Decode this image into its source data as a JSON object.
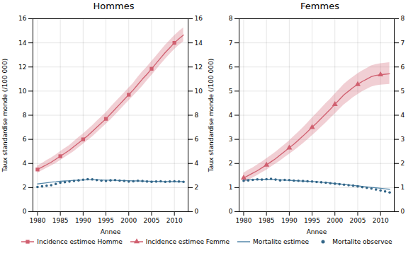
{
  "chart_data": [
    {
      "type": "line",
      "title": "Hommes",
      "xlabel": "Annee",
      "ylabel": "Taux standardise monde (/100 000)",
      "x": [
        1980,
        1981,
        1982,
        1983,
        1984,
        1985,
        1986,
        1987,
        1988,
        1989,
        1990,
        1991,
        1992,
        1993,
        1994,
        1995,
        1996,
        1997,
        1998,
        1999,
        2000,
        2001,
        2002,
        2003,
        2004,
        2005,
        2006,
        2007,
        2008,
        2009,
        2010,
        2011,
        2012
      ],
      "xlim": [
        1979,
        2013
      ],
      "xticks": [
        1980,
        1985,
        1990,
        1995,
        2000,
        2005,
        2010
      ],
      "ylim": [
        0,
        16
      ],
      "yticks": [
        0,
        2,
        4,
        6,
        8,
        10,
        12,
        14,
        16
      ],
      "grid": true,
      "legend": "bottom",
      "series": [
        {
          "name": "Incidence estimee Homme",
          "type": "line",
          "color": "#d06070",
          "marker": "square",
          "values": [
            3.5,
            3.7,
            3.9,
            4.1,
            4.35,
            4.6,
            4.85,
            5.1,
            5.4,
            5.7,
            6.0,
            6.3,
            6.65,
            7.0,
            7.35,
            7.7,
            8.1,
            8.5,
            8.9,
            9.3,
            9.7,
            10.1,
            10.55,
            11.0,
            11.4,
            11.85,
            12.3,
            12.75,
            13.2,
            13.6,
            14.0,
            14.35,
            14.65
          ],
          "lower": [
            3.2,
            3.4,
            3.6,
            3.8,
            4.0,
            4.25,
            4.5,
            4.75,
            5.0,
            5.3,
            5.6,
            5.9,
            6.2,
            6.55,
            6.9,
            7.25,
            7.6,
            8.0,
            8.4,
            8.8,
            9.2,
            9.6,
            10.0,
            10.4,
            10.85,
            11.3,
            11.75,
            12.2,
            12.65,
            13.05,
            13.45,
            13.8,
            14.1
          ],
          "upper": [
            3.8,
            4.0,
            4.25,
            4.45,
            4.7,
            4.98,
            5.25,
            5.5,
            5.82,
            6.15,
            6.45,
            6.78,
            7.12,
            7.5,
            7.85,
            8.2,
            8.65,
            9.05,
            9.45,
            9.85,
            10.25,
            10.65,
            11.15,
            11.6,
            12.0,
            12.45,
            12.9,
            13.35,
            13.8,
            14.2,
            14.6,
            14.95,
            15.25
          ],
          "marker_x": [
            1980,
            1985,
            1990,
            1995,
            2000,
            2005,
            2010
          ],
          "marker_values": [
            3.5,
            4.6,
            6.0,
            7.7,
            9.7,
            11.85,
            14.0
          ]
        },
        {
          "name": "Mortalite estimee",
          "type": "line",
          "color": "#5588aa",
          "values": [
            2.3,
            2.35,
            2.4,
            2.45,
            2.48,
            2.52,
            2.55,
            2.57,
            2.6,
            2.62,
            2.63,
            2.64,
            2.64,
            2.64,
            2.63,
            2.62,
            2.61,
            2.6,
            2.59,
            2.58,
            2.57,
            2.56,
            2.55,
            2.54,
            2.53,
            2.52,
            2.51,
            2.5,
            2.5,
            2.5,
            2.49,
            2.49,
            2.49
          ]
        },
        {
          "name": "Mortalite observee",
          "type": "scatter",
          "color": "#336688",
          "marker": "circle",
          "values": [
            2.05,
            2.1,
            2.15,
            2.2,
            2.3,
            2.4,
            2.45,
            2.5,
            2.55,
            2.6,
            2.65,
            2.7,
            2.68,
            2.62,
            2.58,
            2.55,
            2.6,
            2.62,
            2.58,
            2.55,
            2.5,
            2.52,
            2.56,
            2.54,
            2.5,
            2.48,
            2.5,
            2.52,
            2.48,
            2.5,
            2.52,
            2.5,
            2.48
          ]
        }
      ]
    },
    {
      "type": "line",
      "title": "Femmes",
      "xlabel": "Annee",
      "ylabel": "Taux standardise monde (/100 000)",
      "x": [
        1980,
        1981,
        1982,
        1983,
        1984,
        1985,
        1986,
        1987,
        1988,
        1989,
        1990,
        1991,
        1992,
        1993,
        1994,
        1995,
        1996,
        1997,
        1998,
        1999,
        2000,
        2001,
        2002,
        2003,
        2004,
        2005,
        2006,
        2007,
        2008,
        2009,
        2010,
        2011,
        2012
      ],
      "xlim": [
        1979,
        2013
      ],
      "xticks": [
        1980,
        1985,
        1990,
        1995,
        2000,
        2005,
        2010
      ],
      "ylim": [
        0,
        8
      ],
      "yticks": [
        0,
        1,
        2,
        3,
        4,
        5,
        6,
        7,
        8
      ],
      "grid": true,
      "legend": "bottom",
      "series": [
        {
          "name": "Incidence estimee Femme",
          "type": "line",
          "color": "#d06070",
          "marker": "triangle",
          "values": [
            1.4,
            1.5,
            1.6,
            1.7,
            1.82,
            1.94,
            2.07,
            2.2,
            2.35,
            2.5,
            2.65,
            2.8,
            2.97,
            3.14,
            3.32,
            3.5,
            3.68,
            3.87,
            4.06,
            4.25,
            4.45,
            4.65,
            4.85,
            5.0,
            5.15,
            5.28,
            5.4,
            5.5,
            5.6,
            5.65,
            5.68,
            5.7,
            5.72
          ],
          "lower": [
            1.2,
            1.3,
            1.4,
            1.5,
            1.62,
            1.72,
            1.85,
            1.98,
            2.1,
            2.25,
            2.38,
            2.52,
            2.67,
            2.82,
            2.98,
            3.15,
            3.32,
            3.5,
            3.68,
            3.87,
            4.05,
            4.24,
            4.43,
            4.58,
            4.73,
            4.86,
            4.98,
            5.08,
            5.17,
            5.22,
            5.25,
            5.27,
            5.28
          ],
          "upper": [
            1.6,
            1.72,
            1.82,
            1.94,
            2.06,
            2.2,
            2.33,
            2.47,
            2.62,
            2.78,
            2.94,
            3.12,
            3.3,
            3.48,
            3.68,
            3.88,
            4.08,
            4.28,
            4.48,
            4.67,
            4.88,
            5.08,
            5.28,
            5.44,
            5.58,
            5.72,
            5.84,
            5.94,
            6.05,
            6.1,
            6.14,
            6.16,
            6.18
          ],
          "marker_x": [
            1980,
            1985,
            1990,
            1995,
            2000,
            2005,
            2010
          ],
          "marker_values": [
            1.4,
            1.94,
            2.65,
            3.5,
            4.45,
            5.28,
            5.68
          ]
        },
        {
          "name": "Mortalite estimee",
          "type": "line",
          "color": "#5588aa",
          "values": [
            1.3,
            1.32,
            1.33,
            1.34,
            1.34,
            1.34,
            1.34,
            1.33,
            1.32,
            1.31,
            1.3,
            1.29,
            1.28,
            1.27,
            1.26,
            1.25,
            1.24,
            1.22,
            1.21,
            1.19,
            1.17,
            1.15,
            1.13,
            1.11,
            1.09,
            1.07,
            1.05,
            1.03,
            1.01,
            0.99,
            0.97,
            0.95,
            0.93
          ]
        },
        {
          "name": "Mortalite observee",
          "type": "scatter",
          "color": "#336688",
          "marker": "circle",
          "values": [
            1.28,
            1.3,
            1.32,
            1.34,
            1.33,
            1.35,
            1.36,
            1.33,
            1.3,
            1.32,
            1.31,
            1.29,
            1.28,
            1.27,
            1.26,
            1.25,
            1.23,
            1.22,
            1.2,
            1.18,
            1.16,
            1.14,
            1.12,
            1.1,
            1.08,
            1.05,
            1.02,
            0.99,
            0.96,
            0.92,
            0.88,
            0.84,
            0.8
          ]
        }
      ]
    }
  ]
}
